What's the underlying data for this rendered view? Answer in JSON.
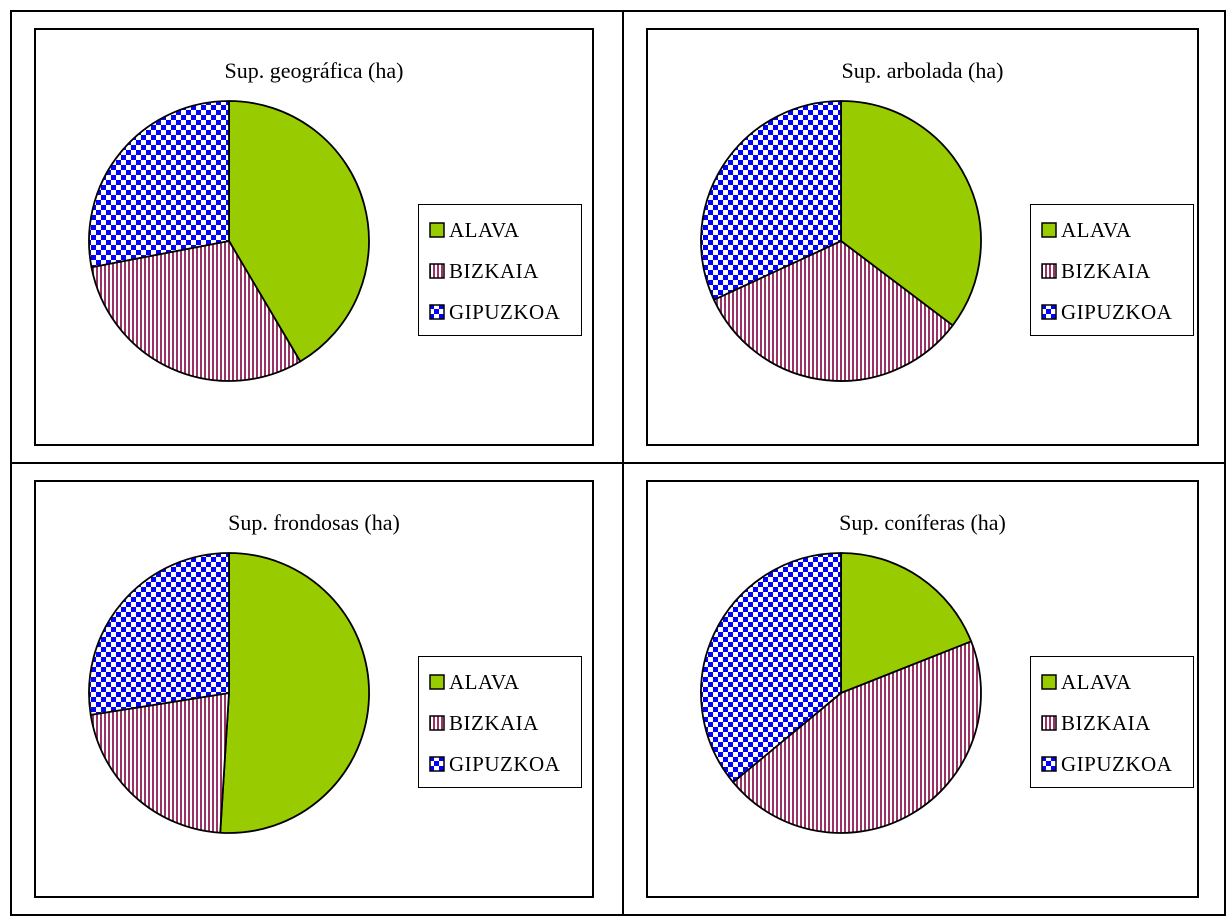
{
  "colors": {
    "alava": "#99cc00",
    "bizkaia_stripe": "#993366",
    "gipuzkoa_check": "#0000ff",
    "outline": "#000000"
  },
  "legend": [
    "ALAVA",
    "BIZKAIA",
    "GIPUZKOA"
  ],
  "chart_data": [
    {
      "type": "pie",
      "title": "Sup. geográfica (ha)",
      "categories": [
        "ALAVA",
        "BIZKAIA",
        "GIPUZKOA"
      ],
      "values": [
        41.5,
        30.5,
        28.0
      ],
      "legend": "right"
    },
    {
      "type": "pie",
      "title": "Sup. arbolada (ha)",
      "categories": [
        "ALAVA",
        "BIZKAIA",
        "GIPUZKOA"
      ],
      "values": [
        35.3,
        32.8,
        31.9
      ],
      "legend": "right"
    },
    {
      "type": "pie",
      "title": "Sup. frondosas (ha)",
      "categories": [
        "ALAVA",
        "BIZKAIA",
        "GIPUZKOA"
      ],
      "values": [
        51.0,
        21.5,
        27.5
      ],
      "legend": "right"
    },
    {
      "type": "pie",
      "title": "Sup. coníferas (ha)",
      "categories": [
        "ALAVA",
        "BIZKAIA",
        "GIPUZKOA"
      ],
      "values": [
        19.0,
        45.0,
        36.0
      ],
      "legend": "right"
    }
  ]
}
